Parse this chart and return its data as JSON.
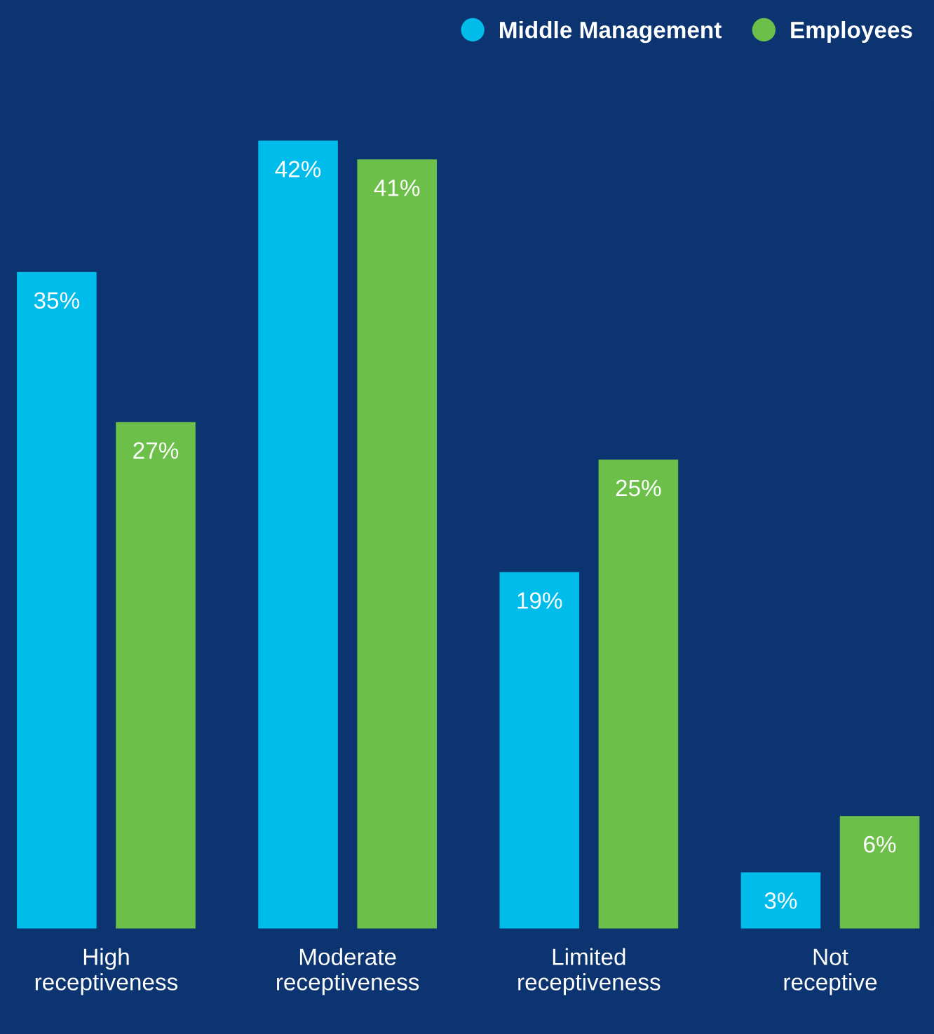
{
  "chart_data": {
    "type": "bar",
    "categories": [
      "High receptiveness",
      "Moderate receptiveness",
      "Limited receptiveness",
      "Not receptive"
    ],
    "series": [
      {
        "name": "Middle Management",
        "color": "#00bceb",
        "values": [
          35,
          42,
          19,
          3
        ],
        "value_labels": [
          "35%",
          "42%",
          "19%",
          "3%"
        ]
      },
      {
        "name": "Employees",
        "color": "#6cc04a",
        "values": [
          27,
          41,
          25,
          6
        ],
        "value_labels": [
          "27%",
          "41%",
          "25%",
          "6%"
        ]
      }
    ],
    "legend": "top right",
    "grid": false
  }
}
